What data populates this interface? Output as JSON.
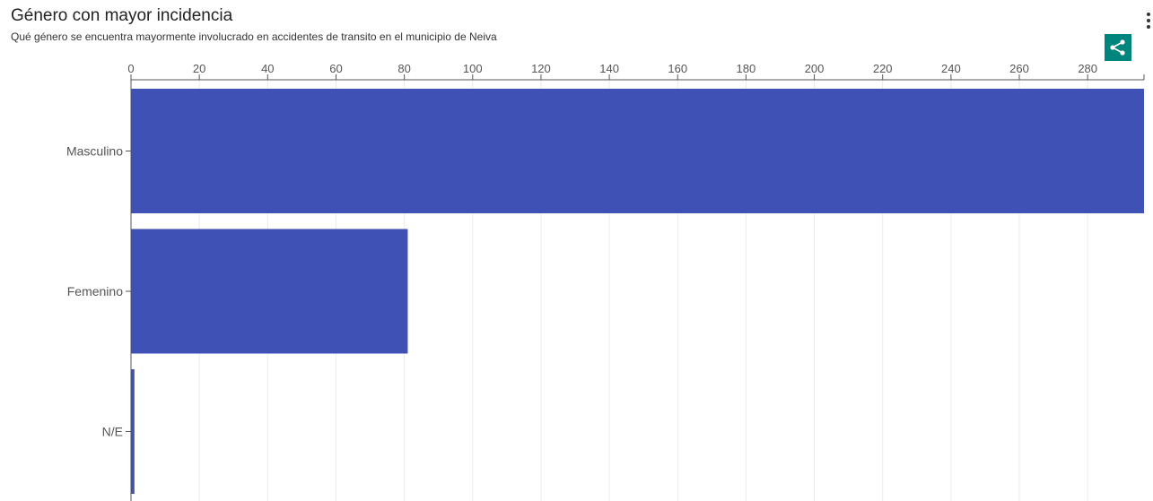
{
  "header": {
    "title": "Género con mayor incidencia",
    "subtitle": "Qué género se encuentra mayormente involucrado en accidentes de transito en el municipio de Neiva"
  },
  "toolbar": {
    "menu_icon": "more-vertical-icon",
    "share_icon": "share-icon"
  },
  "colors": {
    "bar": "#3f51b5",
    "share_button": "#00857e",
    "grid": "#ebebeb",
    "axis": "#555555"
  },
  "chart_data": {
    "type": "bar",
    "orientation": "horizontal",
    "categories": [
      "Masculino",
      "Femenino",
      "N/E"
    ],
    "values": [
      297,
      81,
      1
    ],
    "xlim": [
      0,
      296.5
    ],
    "xticks": [
      0,
      20,
      40,
      60,
      80,
      100,
      120,
      140,
      160,
      180,
      200,
      220,
      240,
      260,
      280
    ],
    "axis_position": "top",
    "grid": true,
    "title": "Género con mayor incidencia",
    "subtitle": "Qué género se encuentra mayormente involucrado en accidentes de transito en el municipio de Neiva"
  }
}
